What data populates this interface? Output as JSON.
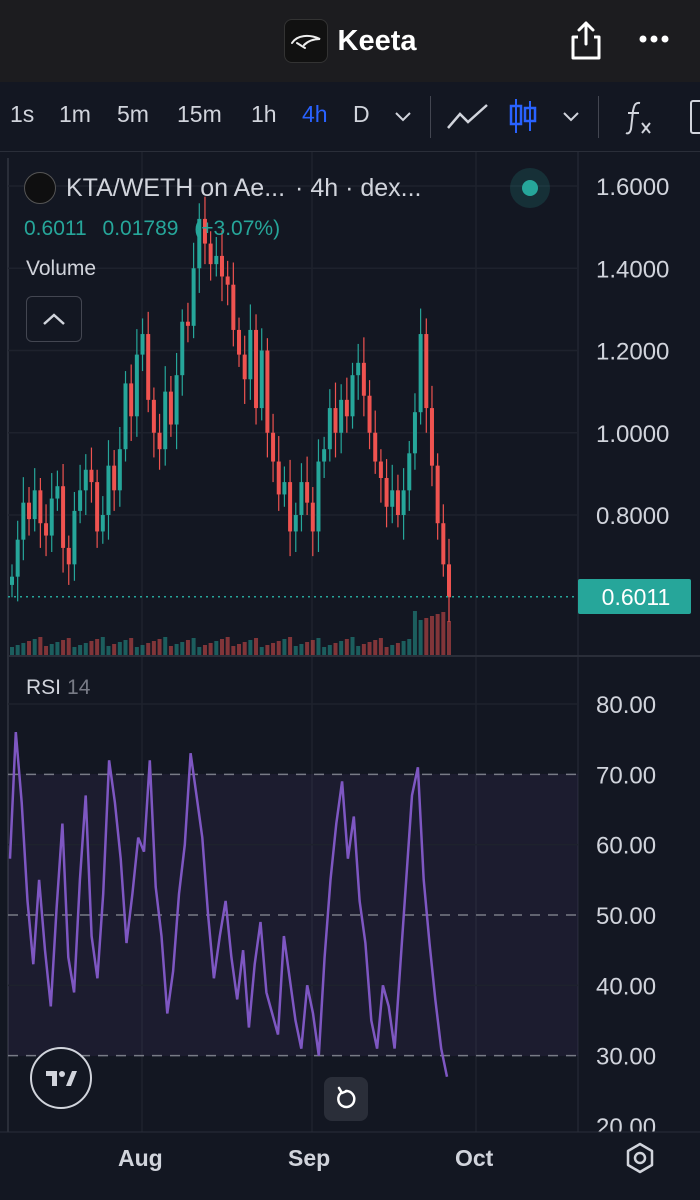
{
  "header": {
    "title": "Keeta",
    "share_icon": "share-icon",
    "more_icon": "more-icon"
  },
  "toolbar": {
    "timeframes": [
      "1s",
      "1m",
      "5m",
      "15m",
      "1h",
      "4h",
      "D"
    ],
    "active_timeframe": "4h",
    "accent_color": "#2962ff"
  },
  "symbol": {
    "name": "KTA/WETH on Ae...",
    "interval": "· 4h · dex...",
    "price": "0.6011",
    "change": "0.01789",
    "change_pct": "(+3.07%)",
    "up_color": "#26a69a",
    "down_color": "#ef5350"
  },
  "panes": {
    "volume_label": "Volume",
    "rsi_label": "RSI",
    "rsi_param": "14",
    "rsi_color": "#7e57c2"
  },
  "chart_data": {
    "type": "line",
    "price": {
      "ylabels": [
        "1.6000",
        "1.4000",
        "1.2000",
        "1.0000",
        "0.8000"
      ],
      "yticks": [
        1.6,
        1.4,
        1.2,
        1.0,
        0.8
      ],
      "last_price_label": "0.6011",
      "last_price": 0.6011,
      "close": [
        0.65,
        0.74,
        0.83,
        0.79,
        0.86,
        0.78,
        0.75,
        0.84,
        0.87,
        0.72,
        0.68,
        0.81,
        0.86,
        0.91,
        0.88,
        0.76,
        0.8,
        0.92,
        0.86,
        0.96,
        1.12,
        1.04,
        1.19,
        1.24,
        1.08,
        1.0,
        0.96,
        1.1,
        1.02,
        1.14,
        1.27,
        1.26,
        1.4,
        1.52,
        1.46,
        1.41,
        1.43,
        1.38,
        1.36,
        1.25,
        1.19,
        1.13,
        1.25,
        1.06,
        1.2,
        1.0,
        0.93,
        0.85,
        0.88,
        0.76,
        0.8,
        0.88,
        0.83,
        0.76,
        0.93,
        0.96,
        1.06,
        1.0,
        1.08,
        1.04,
        1.14,
        1.17,
        1.09,
        1.0,
        0.93,
        0.89,
        0.82,
        0.86,
        0.8,
        0.86,
        0.95,
        1.05,
        1.24,
        1.06,
        0.92,
        0.78,
        0.68,
        0.6
      ]
    },
    "rsi": {
      "ylabels": [
        "80.00",
        "70.00",
        "60.00",
        "50.00",
        "40.00",
        "30.00",
        "20.00"
      ],
      "yticks": [
        80,
        70,
        60,
        50,
        40,
        30,
        20
      ],
      "upper_band": 70,
      "middle_band": 50,
      "lower_band": 30,
      "values": [
        58,
        76,
        66,
        52,
        43,
        55,
        45,
        37,
        51,
        63,
        44,
        39,
        55,
        67,
        47,
        41,
        53,
        72,
        66,
        58,
        46,
        53,
        61,
        59,
        72,
        54,
        47,
        36,
        42,
        53,
        60,
        73,
        67,
        61,
        50,
        41,
        47,
        52,
        44,
        38,
        45,
        34,
        43,
        49,
        39,
        36,
        33,
        47,
        41,
        35,
        31,
        40,
        36,
        30,
        44,
        55,
        63,
        69,
        58,
        64,
        52,
        46,
        35,
        31,
        40,
        37,
        31,
        43,
        55,
        67,
        71,
        55,
        46,
        38,
        31,
        27
      ]
    },
    "x_ticks": [
      "Aug",
      "Sep",
      "Oct"
    ]
  }
}
